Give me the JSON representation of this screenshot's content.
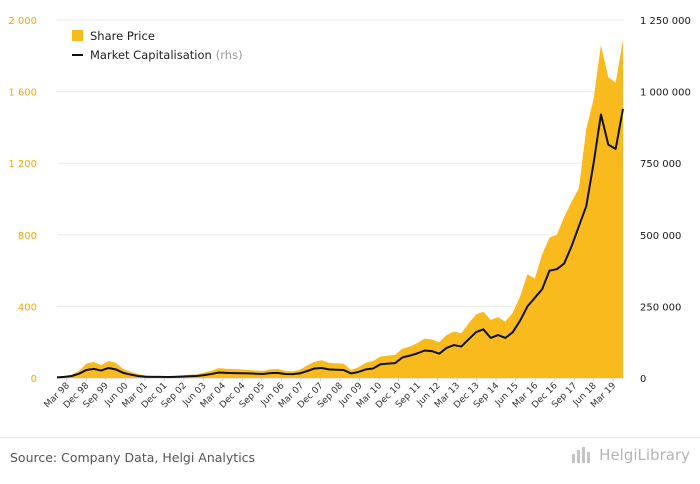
{
  "source": "Source: Company Data, Helgi Analytics",
  "logo_text": "HelgiLibrary",
  "colors": {
    "share_price": "#f9ba1e",
    "market_cap": "#111111",
    "left_axis": "#f0a800"
  },
  "chart_data": {
    "type": "area",
    "legend_position": "top-left",
    "grid": true,
    "x_labels": [
      "Mar 98",
      "Dec 98",
      "Sep 99",
      "Jun 00",
      "Mar 01",
      "Dec 01",
      "Sep 02",
      "Jun 03",
      "Mar 04",
      "Dec 04",
      "Sep 05",
      "Jun 06",
      "Mar 07",
      "Dec 07",
      "Sep 08",
      "Jun 09",
      "Mar 10",
      "Dec 10",
      "Sep 11",
      "Jun 12",
      "Mar 13",
      "Dec 13",
      "Sep 14",
      "Jun 15",
      "Mar 16",
      "Dec 16",
      "Sep 17",
      "Jun 18",
      "Mar 19"
    ],
    "y_left": {
      "ticks": [
        "0",
        "400",
        "800",
        "1 200",
        "1 600",
        "2 000"
      ],
      "min": 0,
      "max": 2000
    },
    "y_right": {
      "ticks": [
        "0",
        "250 000",
        "500 000",
        "750 000",
        "1 000 000",
        "1 250 000"
      ],
      "min": 0,
      "max": 1250000
    },
    "series": [
      {
        "name": "Share Price",
        "type": "area",
        "values": [
          0,
          10,
          18,
          40,
          80,
          90,
          72,
          95,
          85,
          50,
          35,
          22,
          15,
          12,
          12,
          10,
          12,
          15,
          18,
          20,
          30,
          40,
          55,
          52,
          50,
          48,
          45,
          42,
          40,
          48,
          50,
          40,
          38,
          45,
          70,
          90,
          100,
          85,
          82,
          80,
          45,
          60,
          85,
          95,
          120,
          125,
          130,
          165,
          175,
          195,
          220,
          215,
          200,
          240,
          260,
          250,
          305,
          355,
          370,
          325,
          340,
          315,
          365,
          455,
          580,
          555,
          690,
          785,
          800,
          900,
          985,
          1060,
          1390,
          1560,
          1860,
          1680,
          1650,
          1890
        ]
      },
      {
        "name": "Market Capitalisation",
        "unit": "(rhs)",
        "type": "line",
        "values": [
          2000,
          4000,
          7000,
          15000,
          28000,
          32000,
          26000,
          35000,
          30000,
          18000,
          12000,
          7000,
          4500,
          4000,
          4000,
          3500,
          4000,
          5000,
          6000,
          7000,
          10000,
          14000,
          19000,
          18000,
          17000,
          16500,
          16000,
          15000,
          14000,
          17000,
          18000,
          14000,
          13500,
          16000,
          24000,
          33000,
          35000,
          30000,
          29000,
          28000,
          16000,
          21000,
          30000,
          33000,
          48000,
          50000,
          52000,
          72000,
          78000,
          86000,
          96000,
          94000,
          85000,
          105000,
          115000,
          110000,
          135000,
          160000,
          170000,
          140000,
          150000,
          140000,
          160000,
          200000,
          250000,
          280000,
          310000,
          375000,
          380000,
          400000,
          460000,
          530000,
          600000,
          750000,
          920000,
          815000,
          800000,
          940000
        ]
      }
    ]
  }
}
